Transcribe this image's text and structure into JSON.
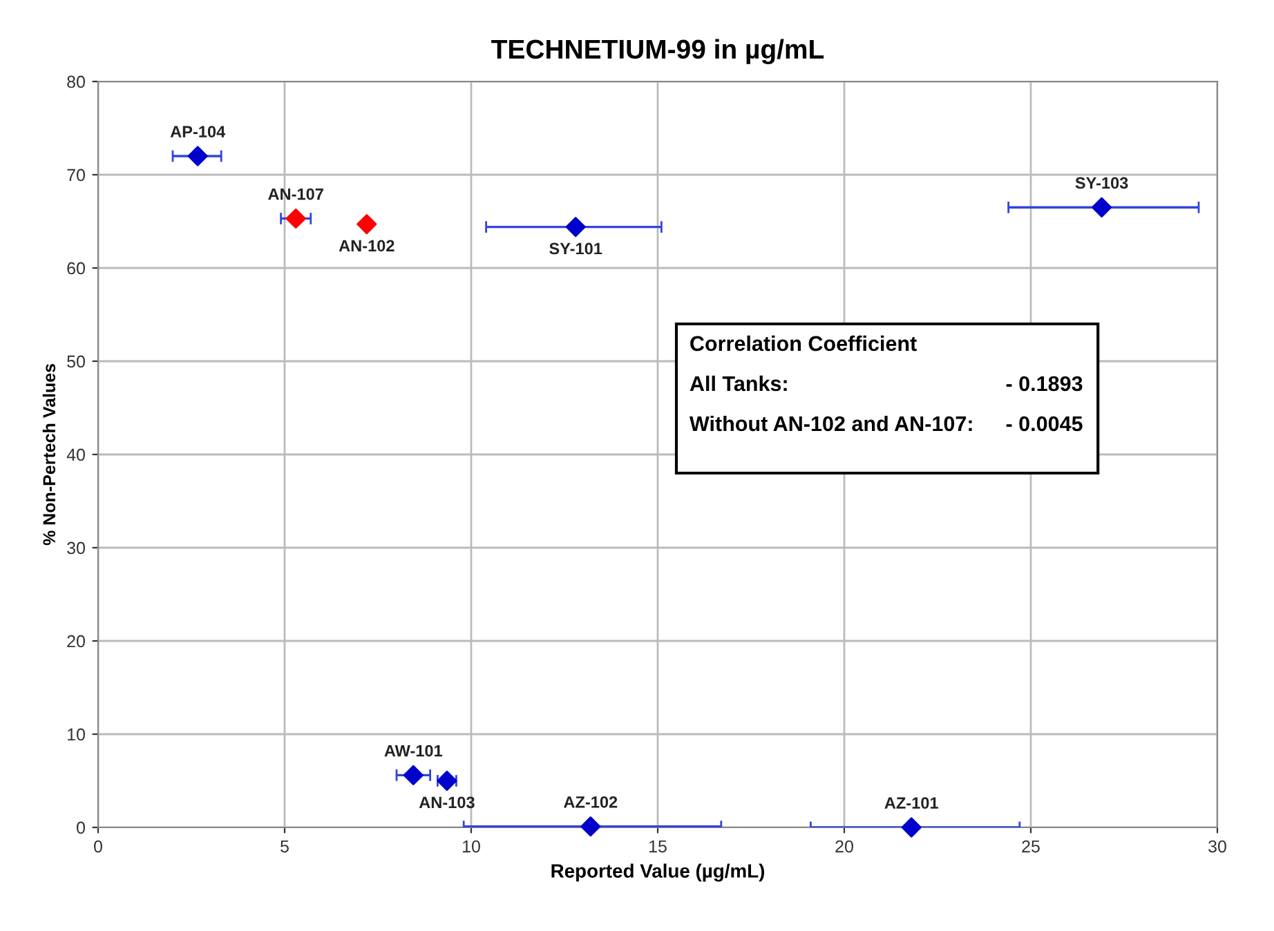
{
  "chart_data": {
    "type": "scatter",
    "title": "TECHNETIUM-99 in µg/mL",
    "xlabel": "Reported Value (µg/mL)",
    "ylabel": "% Non-Pertech Values",
    "x": [
      2.67,
      5.3,
      7.2,
      12.8,
      26.9,
      8.45,
      9.35,
      13.2,
      21.8
    ],
    "values": [
      72.0,
      65.3,
      64.7,
      64.4,
      66.5,
      5.6,
      5.0,
      0.1,
      0.0
    ],
    "colors": [
      "#0000cc",
      "#ff0000",
      "#ff0000",
      "#0000cc",
      "#0000cc",
      "#0000cc",
      "#0000cc",
      "#0000cc",
      "#0000cc"
    ],
    "xerrors": [
      [
        2.0,
        3.3
      ],
      [
        4.9,
        5.7
      ],
      [
        7.1,
        7.3
      ],
      [
        10.4,
        15.1
      ],
      [
        24.4,
        29.5
      ],
      [
        8.0,
        8.9
      ],
      [
        9.1,
        9.6
      ],
      [
        9.8,
        16.7
      ],
      [
        19.1,
        24.7
      ]
    ],
    "annotations": [
      {
        "text": "AP-104",
        "x": 2.67,
        "y": 72.0
      },
      {
        "text": "AN-107",
        "x": 5.3,
        "y": 65.3
      },
      {
        "text": "AN-102",
        "x": 7.2,
        "y": 64.7
      },
      {
        "text": "SY-101",
        "x": 12.8,
        "y": 64.4
      },
      {
        "text": "SY-103",
        "x": 26.9,
        "y": 66.5
      },
      {
        "text": "AW-101",
        "x": 8.45,
        "y": 5.6
      },
      {
        "text": "AN-103",
        "x": 9.35,
        "y": 5.0
      },
      {
        "text": "AZ-102",
        "x": 13.2,
        "y": 0.1
      },
      {
        "text": "AZ-101",
        "x": 21.8,
        "y": 0.0
      },
      "Correlation Coefficient",
      "All Tanks:",
      "- 0.1893",
      "Without AN-102 and AN-107:",
      "- 0.0045"
    ],
    "xlim": [
      0,
      30
    ],
    "ylim": [
      0,
      80
    ],
    "xticks": [
      0,
      5,
      10,
      15,
      20,
      25,
      30
    ],
    "yticks": [
      0,
      10,
      20,
      30,
      40,
      50,
      60,
      70,
      80
    ],
    "grid": true,
    "marker": "diamond"
  }
}
